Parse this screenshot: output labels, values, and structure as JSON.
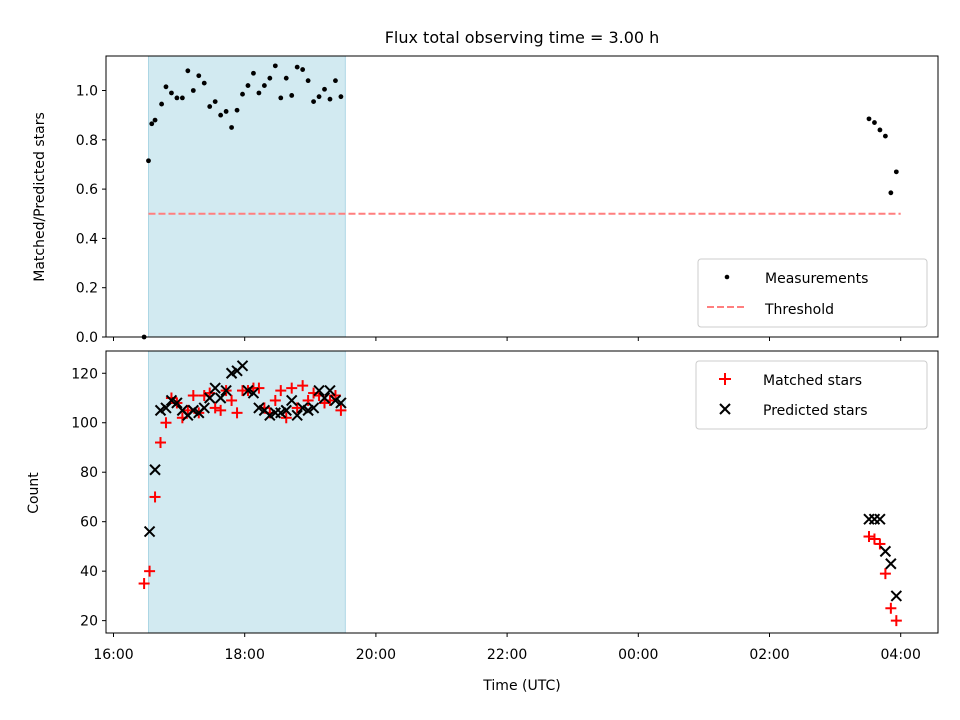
{
  "title": "Flux total observing time = 3.00 h",
  "chart_data": [
    {
      "type": "scatter",
      "ylabel": "Matched/Predicted stars",
      "ylim": [
        0,
        1.14
      ],
      "yticks": [
        "0.0",
        "0.2",
        "0.4",
        "0.6",
        "0.8",
        "1.0"
      ],
      "legend": {
        "position": "lower-right",
        "entries": [
          "Measurements",
          "Threshold"
        ]
      },
      "shaded_interval": {
        "from": "16:32",
        "to": "19:32",
        "color": "#add8e6"
      },
      "series": [
        {
          "name": "Measurements",
          "color": "#000000",
          "marker": "dot",
          "points": [
            [
              "16:28",
              0.0
            ],
            [
              "16:32",
              0.715
            ],
            [
              "16:35",
              0.865
            ],
            [
              "16:38",
              0.88
            ],
            [
              "16:44",
              0.945
            ],
            [
              "16:48",
              1.015
            ],
            [
              "16:53",
              0.99
            ],
            [
              "16:58",
              0.97
            ],
            [
              "17:03",
              0.97
            ],
            [
              "17:08",
              1.08
            ],
            [
              "17:13",
              1.0
            ],
            [
              "17:18",
              1.06
            ],
            [
              "17:23",
              1.03
            ],
            [
              "17:28",
              0.935
            ],
            [
              "17:33",
              0.955
            ],
            [
              "17:38",
              0.9
            ],
            [
              "17:43",
              0.915
            ],
            [
              "17:48",
              0.85
            ],
            [
              "17:53",
              0.92
            ],
            [
              "17:58",
              0.985
            ],
            [
              "18:03",
              1.02
            ],
            [
              "18:08",
              1.07
            ],
            [
              "18:13",
              0.99
            ],
            [
              "18:18",
              1.02
            ],
            [
              "18:23",
              1.05
            ],
            [
              "18:28",
              1.1
            ],
            [
              "18:33",
              0.97
            ],
            [
              "18:38",
              1.05
            ],
            [
              "18:43",
              0.98
            ],
            [
              "18:48",
              1.095
            ],
            [
              "18:53",
              1.085
            ],
            [
              "18:58",
              1.04
            ],
            [
              "19:03",
              0.955
            ],
            [
              "19:08",
              0.975
            ],
            [
              "19:13",
              1.005
            ],
            [
              "19:18",
              0.965
            ],
            [
              "19:23",
              1.04
            ],
            [
              "19:28",
              0.975
            ],
            [
              "03:31",
              0.885
            ],
            [
              "03:36",
              0.87
            ],
            [
              "03:41",
              0.84
            ],
            [
              "03:46",
              0.815
            ],
            [
              "03:51",
              0.585
            ],
            [
              "03:56",
              0.67
            ]
          ]
        },
        {
          "name": "Threshold",
          "color": "#ff7f7f",
          "style": "dashed",
          "points": [
            [
              "16:32",
              0.5
            ],
            [
              "04:00",
              0.5
            ]
          ]
        }
      ]
    },
    {
      "type": "scatter",
      "xlabel": "Time (UTC)",
      "ylabel": "Count",
      "ylim": [
        15,
        129
      ],
      "yticks": [
        "20",
        "40",
        "60",
        "80",
        "100",
        "120"
      ],
      "xticks": [
        "16:00",
        "18:00",
        "20:00",
        "22:00",
        "00:00",
        "02:00",
        "04:00"
      ],
      "legend": {
        "position": "upper-right",
        "entries": [
          "Matched stars",
          "Predicted stars"
        ]
      },
      "shaded_interval": {
        "from": "16:32",
        "to": "19:32",
        "color": "#add8e6"
      },
      "series": [
        {
          "name": "Matched stars",
          "color": "#ff0000",
          "marker": "plus",
          "points": [
            [
              "16:28",
              35
            ],
            [
              "16:33",
              40
            ],
            [
              "16:38",
              70
            ],
            [
              "16:43",
              92
            ],
            [
              "16:48",
              100
            ],
            [
              "16:53",
              110
            ],
            [
              "16:58",
              108
            ],
            [
              "17:03",
              102
            ],
            [
              "17:08",
              105
            ],
            [
              "17:13",
              111
            ],
            [
              "17:18",
              104
            ],
            [
              "17:23",
              111
            ],
            [
              "17:28",
              112
            ],
            [
              "17:33",
              106
            ],
            [
              "17:38",
              105
            ],
            [
              "17:43",
              113
            ],
            [
              "17:48",
              109
            ],
            [
              "17:53",
              104
            ],
            [
              "17:58",
              113
            ],
            [
              "18:03",
              113
            ],
            [
              "18:08",
              114
            ],
            [
              "18:13",
              114
            ],
            [
              "18:18",
              106
            ],
            [
              "18:23",
              104
            ],
            [
              "18:28",
              109
            ],
            [
              "18:33",
              113
            ],
            [
              "18:38",
              102
            ],
            [
              "18:43",
              114
            ],
            [
              "18:48",
              106
            ],
            [
              "18:53",
              115
            ],
            [
              "18:58",
              109
            ],
            [
              "19:03",
              112
            ],
            [
              "19:08",
              111
            ],
            [
              "19:13",
              108
            ],
            [
              "19:18",
              109
            ],
            [
              "19:23",
              111
            ],
            [
              "19:28",
              105
            ],
            [
              "03:31",
              54
            ],
            [
              "03:36",
              53
            ],
            [
              "03:41",
              51
            ],
            [
              "03:46",
              39
            ],
            [
              "03:51",
              25
            ],
            [
              "03:56",
              20
            ]
          ]
        },
        {
          "name": "Predicted stars",
          "color": "#000000",
          "marker": "x",
          "points": [
            [
              "16:33",
              56
            ],
            [
              "16:38",
              81
            ],
            [
              "16:43",
              105
            ],
            [
              "16:48",
              106
            ],
            [
              "16:53",
              109
            ],
            [
              "16:58",
              108
            ],
            [
              "17:03",
              105
            ],
            [
              "17:08",
              103
            ],
            [
              "17:13",
              105
            ],
            [
              "17:18",
              104
            ],
            [
              "17:23",
              106
            ],
            [
              "17:28",
              110
            ],
            [
              "17:33",
              114
            ],
            [
              "17:38",
              110
            ],
            [
              "17:43",
              113
            ],
            [
              "17:48",
              120
            ],
            [
              "17:53",
              121
            ],
            [
              "17:58",
              123
            ],
            [
              "18:03",
              113
            ],
            [
              "18:08",
              112
            ],
            [
              "18:13",
              106
            ],
            [
              "18:18",
              105
            ],
            [
              "18:23",
              103
            ],
            [
              "18:28",
              104
            ],
            [
              "18:33",
              104
            ],
            [
              "18:38",
              105
            ],
            [
              "18:43",
              109
            ],
            [
              "18:48",
              103
            ],
            [
              "18:53",
              106
            ],
            [
              "18:58",
              105
            ],
            [
              "19:03",
              106
            ],
            [
              "19:08",
              113
            ],
            [
              "19:13",
              110
            ],
            [
              "19:18",
              113
            ],
            [
              "19:23",
              109
            ],
            [
              "19:28",
              108
            ],
            [
              "03:31",
              61
            ],
            [
              "03:36",
              61
            ],
            [
              "03:41",
              61
            ],
            [
              "03:46",
              48
            ],
            [
              "03:51",
              43
            ],
            [
              "03:56",
              30
            ]
          ]
        }
      ]
    }
  ]
}
